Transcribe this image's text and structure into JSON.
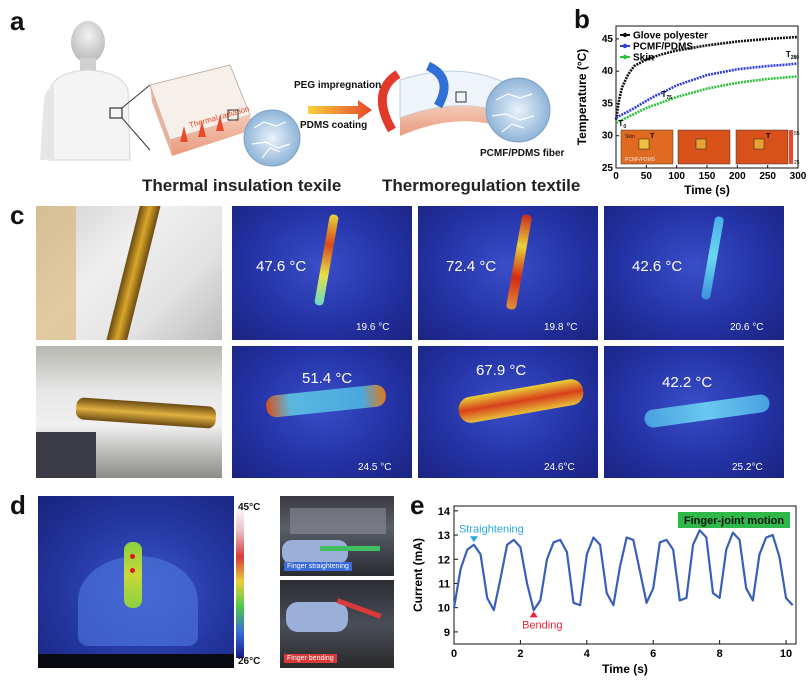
{
  "panels": {
    "a": "a",
    "b": "b",
    "c": "c",
    "d": "d",
    "e": "e"
  },
  "panel_a": {
    "step1": "PEG impregnation",
    "step2": "PDMS coating",
    "fiber_label": "PCMF/PDMS fiber",
    "left_title": "Thermal insulation texile",
    "right_title": "Thermoregulation textile"
  },
  "panel_c": {
    "row1": [
      {
        "peak": "47.6 °C",
        "ambient": "19.6 °C"
      },
      {
        "peak": "72.4 °C",
        "ambient": "19.8 °C"
      },
      {
        "peak": "42.6 °C",
        "ambient": "20.6 °C"
      }
    ],
    "row2": [
      {
        "peak": "51.4 °C",
        "ambient": "24.5 °C"
      },
      {
        "peak": "67.9 °C",
        "ambient": "24.6°C"
      },
      {
        "peak": "42.2 °C",
        "ambient": "25.2°C"
      }
    ]
  },
  "panel_d": {
    "scale_max": "45°C",
    "scale_min": "26°C",
    "caption_top": "Finger straightening",
    "caption_bottom": "Finger bending"
  },
  "colors": {
    "black_series": "#111111",
    "blue_series": "#2f3fd6",
    "green_series": "#2fbf3f",
    "current_line": "#3a5fb8",
    "legend_box": "#2fb84a"
  },
  "chart_data": [
    {
      "type": "line",
      "panel": "b",
      "xlabel": "Time (s)",
      "ylabel": "Temperature (°C)",
      "xlim": [
        0,
        300
      ],
      "ylim": [
        25,
        47
      ],
      "xticks": [
        "0",
        "50",
        "100",
        "150",
        "200",
        "250",
        "300"
      ],
      "yticks": [
        "25",
        "30",
        "35",
        "40",
        "45"
      ],
      "series": [
        {
          "name": "Glove polyester",
          "x": [
            0,
            5,
            10,
            20,
            30,
            50,
            75,
            100,
            150,
            200,
            250,
            300
          ],
          "y": [
            32.5,
            35.5,
            37.5,
            39.5,
            40.8,
            41.8,
            42.6,
            43.2,
            44.0,
            44.6,
            45.0,
            45.3
          ]
        },
        {
          "name": "PCMF/PDMS",
          "x": [
            0,
            25,
            50,
            65,
            75,
            100,
            150,
            200,
            250,
            280,
            300
          ],
          "y": [
            32.8,
            34.0,
            35.4,
            36.2,
            36.6,
            37.8,
            39.4,
            40.3,
            40.8,
            41.0,
            41.2
          ]
        },
        {
          "name": "Skin",
          "x": [
            0,
            50,
            100,
            150,
            200,
            250,
            300
          ],
          "y": [
            32.0,
            34.3,
            36.0,
            37.3,
            38.2,
            38.8,
            39.2
          ]
        }
      ],
      "annotations": [
        "T",
        "T",
        "T",
        "T",
        "T"
      ],
      "annotation_subs": [
        "0",
        "75",
        "280"
      ],
      "inset_labels": [
        "Skin",
        "PCMF/PDMS"
      ],
      "inset_scale": [
        "55",
        "25"
      ]
    },
    {
      "type": "line",
      "panel": "e",
      "xlabel": "Time (s)",
      "ylabel": "Current (mA)",
      "xlim": [
        0,
        10.3
      ],
      "ylim": [
        8.5,
        14.2
      ],
      "xticks": [
        "0",
        "2",
        "4",
        "6",
        "8",
        "10"
      ],
      "yticks": [
        "9",
        "10",
        "11",
        "12",
        "13",
        "14"
      ],
      "legend": "Finger-joint motion",
      "annotations": {
        "straightening": "Straightening",
        "bending": "Bending"
      },
      "series": [
        {
          "name": "Current",
          "x": [
            0,
            0.2,
            0.4,
            0.6,
            0.8,
            1.0,
            1.2,
            1.4,
            1.6,
            1.8,
            2.0,
            2.2,
            2.4,
            2.6,
            2.8,
            3.0,
            3.2,
            3.4,
            3.6,
            3.8,
            4.0,
            4.2,
            4.4,
            4.6,
            4.8,
            5.0,
            5.2,
            5.4,
            5.6,
            5.8,
            6.0,
            6.2,
            6.4,
            6.6,
            6.8,
            7.0,
            7.2,
            7.4,
            7.6,
            7.8,
            8.0,
            8.2,
            8.4,
            8.6,
            8.8,
            9.0,
            9.2,
            9.4,
            9.6,
            9.8,
            10.0,
            10.2
          ],
          "y": [
            10.0,
            11.6,
            12.4,
            12.6,
            12.2,
            10.4,
            9.9,
            11.2,
            12.6,
            12.8,
            12.5,
            11.0,
            9.9,
            10.3,
            12.0,
            12.7,
            12.8,
            12.3,
            10.2,
            10.1,
            12.2,
            12.9,
            12.6,
            10.6,
            10.1,
            11.7,
            12.9,
            12.8,
            11.5,
            10.2,
            10.8,
            12.7,
            12.8,
            12.4,
            10.3,
            10.4,
            12.6,
            13.2,
            12.9,
            10.6,
            10.4,
            12.4,
            13.1,
            12.8,
            10.8,
            10.3,
            12.2,
            12.9,
            13.0,
            12.1,
            10.4,
            10.1
          ]
        }
      ]
    }
  ]
}
